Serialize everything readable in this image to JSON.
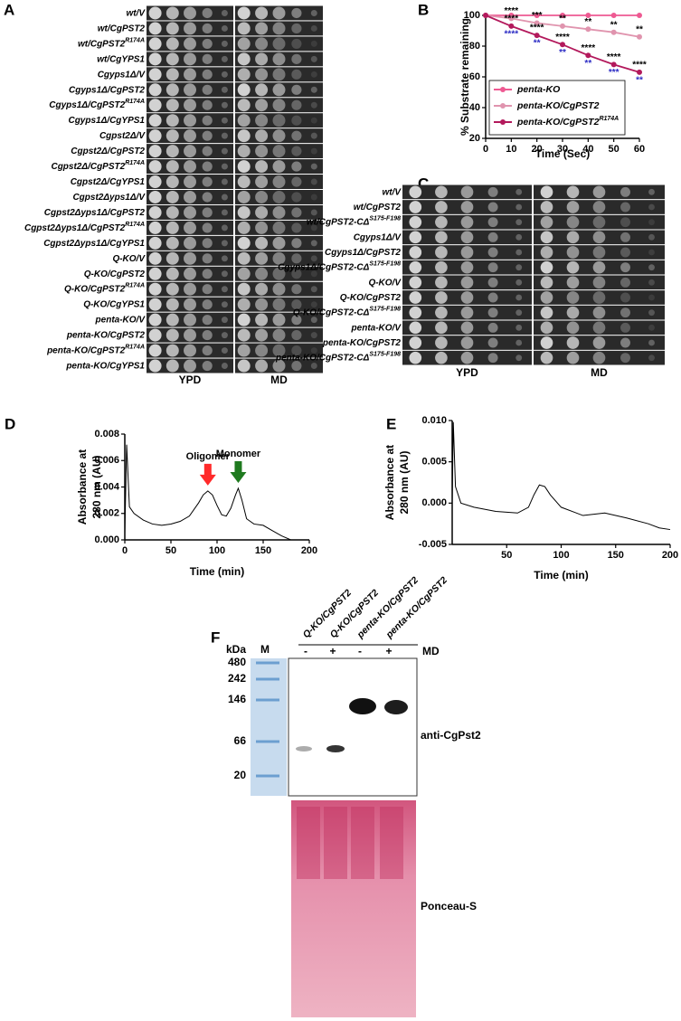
{
  "spot_assay_A": {
    "panel": "A",
    "columns": [
      "YPD",
      "MD"
    ],
    "rows": [
      {
        "text": "wt/V"
      },
      {
        "text": "wt/CgPST2"
      },
      {
        "text": "wt/CgPST2",
        "sup": "R174A"
      },
      {
        "text": "wt/CgYPS1"
      },
      {
        "text": "Cgyps1Δ/V"
      },
      {
        "text": "Cgyps1Δ/CgPST2"
      },
      {
        "text": "Cgyps1Δ/CgPST2",
        "sup": "R174A"
      },
      {
        "text": "Cgyps1Δ/CgYPS1"
      },
      {
        "text": "Cgpst2Δ/V"
      },
      {
        "text": "Cgpst2Δ/CgPST2"
      },
      {
        "text": "Cgpst2Δ/CgPST2",
        "sup": "R174A"
      },
      {
        "text": "Cgpst2Δ/CgYPS1"
      },
      {
        "text": "Cgpst2Δyps1Δ/V"
      },
      {
        "text": "Cgpst2Δyps1Δ/CgPST2"
      },
      {
        "text": "Cgpst2Δyps1Δ/CgPST2",
        "sup": "R174A"
      },
      {
        "text": "Cgpst2Δyps1Δ/CgYPS1"
      },
      {
        "text": "Q-KO/V"
      },
      {
        "text": "Q-KO/CgPST2"
      },
      {
        "text": "Q-KO/CgPST2",
        "sup": "R174A"
      },
      {
        "text": "Q-KO/CgYPS1"
      },
      {
        "text": "penta-KO/V"
      },
      {
        "text": "penta-KO/CgPST2"
      },
      {
        "text": "penta-KO/CgPST2",
        "sup": "R174A"
      },
      {
        "text": "penta-KO/CgYPS1"
      }
    ]
  },
  "spot_assay_C": {
    "panel": "C",
    "columns": [
      "YPD",
      "MD"
    ],
    "rows": [
      {
        "text": "wt/V"
      },
      {
        "text": "wt/CgPST2"
      },
      {
        "text": "wt/CgPST2-CΔ",
        "sup": "S175-F198"
      },
      {
        "text": "Cgyps1Δ/V"
      },
      {
        "text": "Cgyps1Δ/CgPST2"
      },
      {
        "text": "Cgyps1Δ/CgPST2-CΔ",
        "sup": "S175-F198"
      },
      {
        "text": "Q-KO/V"
      },
      {
        "text": "Q-KO/CgPST2"
      },
      {
        "text": "Q-KO/CgPST2-CΔ",
        "sup": "S175-F198"
      },
      {
        "text": "penta-KO/V"
      },
      {
        "text": "penta-KO/CgPST2"
      },
      {
        "text": "penta-KO/CgPST2-CΔ",
        "sup": "S175-F198"
      }
    ]
  },
  "chart_data": [
    {
      "panel": "B",
      "type": "line",
      "xlabel": "Time (Sec)",
      "ylabel": "% Substrate remaining",
      "x": [
        0,
        10,
        20,
        30,
        40,
        50,
        60
      ],
      "xlim": [
        0,
        60
      ],
      "xticks": [
        0,
        10,
        20,
        30,
        40,
        50,
        60
      ],
      "ylim": [
        20,
        100
      ],
      "yticks": [
        20,
        40,
        60,
        80,
        100
      ],
      "markers": true,
      "legend": "lower left",
      "series": [
        {
          "name": "penta-KO",
          "color": "#ee5a92",
          "values": [
            100,
            100,
            100,
            100,
            100,
            100,
            100
          ]
        },
        {
          "name": "penta-KO/CgPST2",
          "color": "#e094ae",
          "values": [
            100,
            98,
            95,
            93,
            91,
            89,
            86
          ],
          "labels": [
            null,
            "****",
            "***",
            "**",
            "**",
            "**",
            "**"
          ],
          "label_color": "#000000"
        },
        {
          "name": "penta-KO/CgPST2",
          "name_sup": "R174A",
          "color": "#b3195c",
          "values": [
            100,
            93,
            87,
            81,
            74,
            68,
            63
          ],
          "labels": [
            null,
            "****",
            "****",
            "****",
            "****",
            "****",
            "****"
          ],
          "label_color": "#000000",
          "alt_labels": [
            null,
            "****",
            "**",
            "**",
            "**",
            "***",
            "**"
          ],
          "alt_label_color": "#2b2bc4"
        }
      ]
    },
    {
      "panel": "D",
      "type": "line",
      "xlabel": "Time (min)",
      "ylabel": [
        "Absorbance at",
        "280 nm (AU)"
      ],
      "x": [
        0,
        2,
        5,
        10,
        20,
        30,
        40,
        50,
        60,
        70,
        80,
        85,
        90,
        95,
        100,
        105,
        110,
        115,
        120,
        123,
        127,
        132,
        140,
        150,
        160,
        170,
        180,
        190
      ],
      "xlim": [
        0,
        200
      ],
      "xticks": [
        0,
        50,
        100,
        150,
        200
      ],
      "ylim": [
        0,
        0.008
      ],
      "yticks": [
        {
          "value": 0,
          "label": "0.000"
        },
        {
          "value": 0.002,
          "label": "0.002"
        },
        {
          "value": 0.004,
          "label": "0.004"
        },
        {
          "value": 0.006,
          "label": "0.006"
        },
        {
          "value": 0.008,
          "label": "0.008"
        }
      ],
      "series": [
        {
          "color": "#000000",
          "values": [
            0.0005,
            0.0072,
            0.0025,
            0.002,
            0.0015,
            0.0012,
            0.0011,
            0.0012,
            0.0014,
            0.0018,
            0.0028,
            0.0034,
            0.0037,
            0.0034,
            0.0026,
            0.0019,
            0.0018,
            0.0024,
            0.0034,
            0.0039,
            0.003,
            0.0016,
            0.0012,
            0.0011,
            0.0007,
            0.0003,
            0,
            0
          ]
        }
      ],
      "annotations": [
        {
          "text": "Oligomer",
          "x": 90,
          "color": "#ff2a2a"
        },
        {
          "text": "Monomer",
          "x": 123,
          "color": "#1f7a1f"
        }
      ]
    },
    {
      "panel": "E",
      "type": "line",
      "xlabel": "Time (min)",
      "ylabel": [
        "Absorbance at",
        "280 nm (AU)"
      ],
      "x": [
        0,
        1,
        3,
        8,
        20,
        40,
        60,
        70,
        75,
        80,
        85,
        90,
        100,
        120,
        140,
        160,
        180,
        190,
        200
      ],
      "xlim": [
        0,
        200
      ],
      "xticks": [
        50,
        100,
        150,
        200
      ],
      "ylim": [
        -0.005,
        0.01
      ],
      "yticks": [
        {
          "value": -0.005,
          "label": "-0.005"
        },
        {
          "value": 0,
          "label": "0.000"
        },
        {
          "value": 0.005,
          "label": "0.005"
        },
        {
          "value": 0.01,
          "label": "0.010"
        }
      ],
      "series": [
        {
          "color": "#000000",
          "values": [
            0,
            0.0098,
            0.002,
            0,
            -0.0005,
            -0.001,
            -0.0012,
            -0.0005,
            0.001,
            0.0022,
            0.002,
            0.001,
            -0.0005,
            -0.0015,
            -0.0012,
            -0.0018,
            -0.0025,
            -0.003,
            -0.0032
          ]
        }
      ]
    }
  ],
  "western_blot_F": {
    "panel": "F",
    "lanes": [
      {
        "label": "Q-KO/CgPST2",
        "treatment": "-"
      },
      {
        "label": "Q-KO/CgPST2",
        "treatment": "+"
      },
      {
        "label": "penta-KO/CgPST2",
        "treatment": "-"
      },
      {
        "label": "penta-KO/CgPST2",
        "treatment": "+"
      }
    ],
    "treatment_label": "MD",
    "size_unit": "kDa",
    "marker_lane": "M",
    "markers": [
      480,
      242,
      146,
      66,
      20
    ],
    "antibody": "anti-CgPst2",
    "stain": "Ponceau-S"
  }
}
